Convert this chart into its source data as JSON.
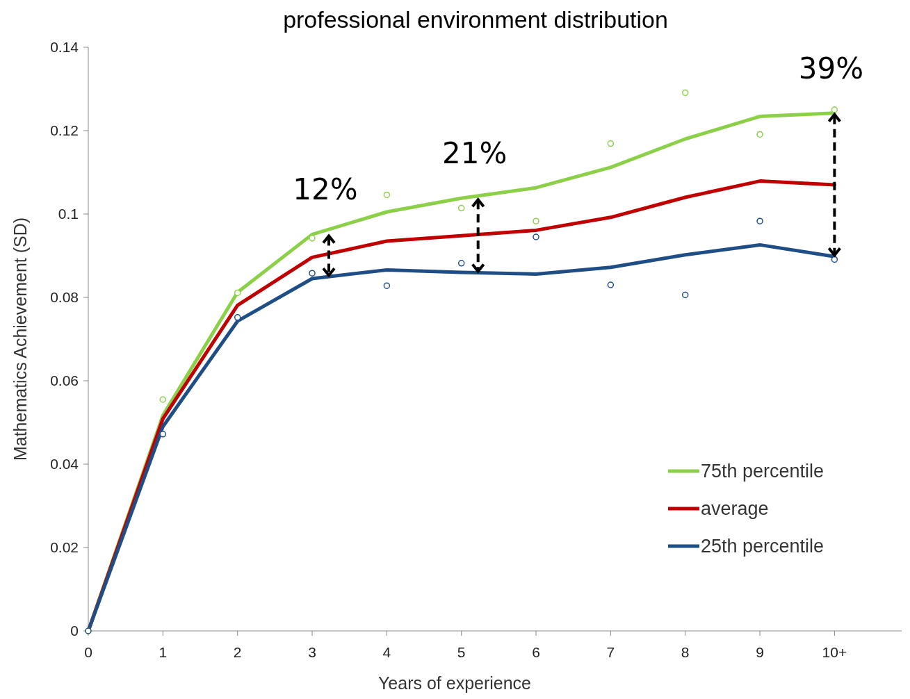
{
  "chart_data": {
    "type": "line",
    "title": "professional environment distribution",
    "xlabel": "Years of experience",
    "ylabel": "Mathematics Achievement (SD)",
    "x": [
      0,
      1,
      2,
      3,
      4,
      5,
      6,
      7,
      8,
      9,
      10
    ],
    "xlim": [
      0,
      10.9
    ],
    "xticks": [
      0,
      1,
      2,
      3,
      4,
      5,
      6,
      7,
      8,
      9,
      {
        "value": 10,
        "label": "10+"
      }
    ],
    "ylim": [
      0,
      0.14
    ],
    "yticks": [
      0,
      0.02,
      0.04,
      0.06,
      0.08,
      0.1,
      0.12,
      0.14
    ],
    "grid": false,
    "legend": "bottom right",
    "marker": "none",
    "line_style": "solid",
    "series": [
      {
        "name": "75th percentile",
        "color": "#8cd04a",
        "values": [
          0,
          0.0517,
          0.0812,
          0.0951,
          0.1005,
          0.1038,
          0.1063,
          0.1112,
          0.118,
          0.1234,
          0.1242
        ]
      },
      {
        "name": "average",
        "color": "#c00000",
        "values": [
          0,
          0.0509,
          0.0781,
          0.0896,
          0.0935,
          0.0948,
          0.0961,
          0.0992,
          0.104,
          0.1079,
          0.107
        ]
      },
      {
        "name": "25th percentile",
        "color": "#1f4e87",
        "values": [
          0,
          0.049,
          0.0743,
          0.0845,
          0.0866,
          0.086,
          0.0856,
          0.0872,
          0.0902,
          0.0926,
          0.0898
        ]
      },
      {
        "type": "scatter",
        "marker": "circle",
        "color": "#8cd04a",
        "values": [
          0,
          0.0555,
          0.0811,
          0.0942,
          0.1046,
          0.1014,
          0.0983,
          0.1169,
          0.1291,
          0.1191,
          0.125
        ]
      },
      {
        "type": "scatter",
        "marker": "circle",
        "color": "#1f4e87",
        "values": [
          0,
          0.0472,
          0.0752,
          0.0858,
          0.0828,
          0.0882,
          0.0945,
          0.083,
          0.0806,
          0.0983,
          0.0891
        ]
      }
    ],
    "annotations": [
      {
        "text": "12%",
        "x": 3,
        "y": 0.0951
      },
      {
        "text": "21%",
        "x": 5,
        "y": 0.1038
      },
      {
        "text": "39%",
        "x": 10,
        "y": 0.1242
      }
    ]
  }
}
